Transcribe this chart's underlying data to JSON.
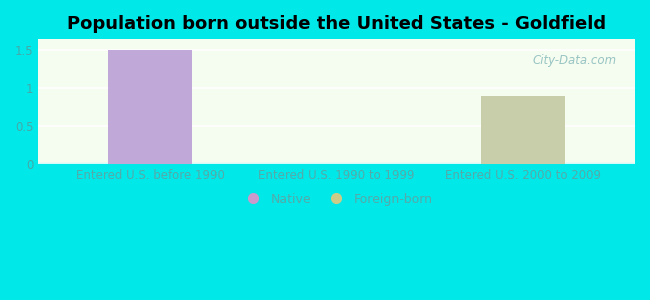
{
  "title": "Population born outside the United States - Goldfield",
  "categories": [
    "Entered U.S. before 1990",
    "Entered U.S. 1990 to 1999",
    "Entered U.S. 2000 to 2009"
  ],
  "native_values": [
    1.5,
    0,
    0
  ],
  "foreign_values": [
    0,
    0,
    0.9
  ],
  "native_color": "#c0a8d8",
  "foreign_color": "#c8ceaa",
  "background_color": "#00e8e8",
  "plot_bg_color": "#e8f5e0",
  "ylabel_ticks": [
    0,
    0.5,
    1,
    1.5
  ],
  "ylim": [
    0,
    1.65
  ],
  "bar_width": 0.45,
  "title_fontsize": 13,
  "tick_label_fontsize": 8.5,
  "tick_color": "#44aaaa",
  "x_tick_color": "#55aaaa",
  "legend_native_label": "Native",
  "legend_foreign_label": "Foreign-born",
  "legend_native_color": "#cc99cc",
  "legend_foreign_color": "#cccc88",
  "watermark": "City-Data.com",
  "watermark_color": "#88bbbb"
}
